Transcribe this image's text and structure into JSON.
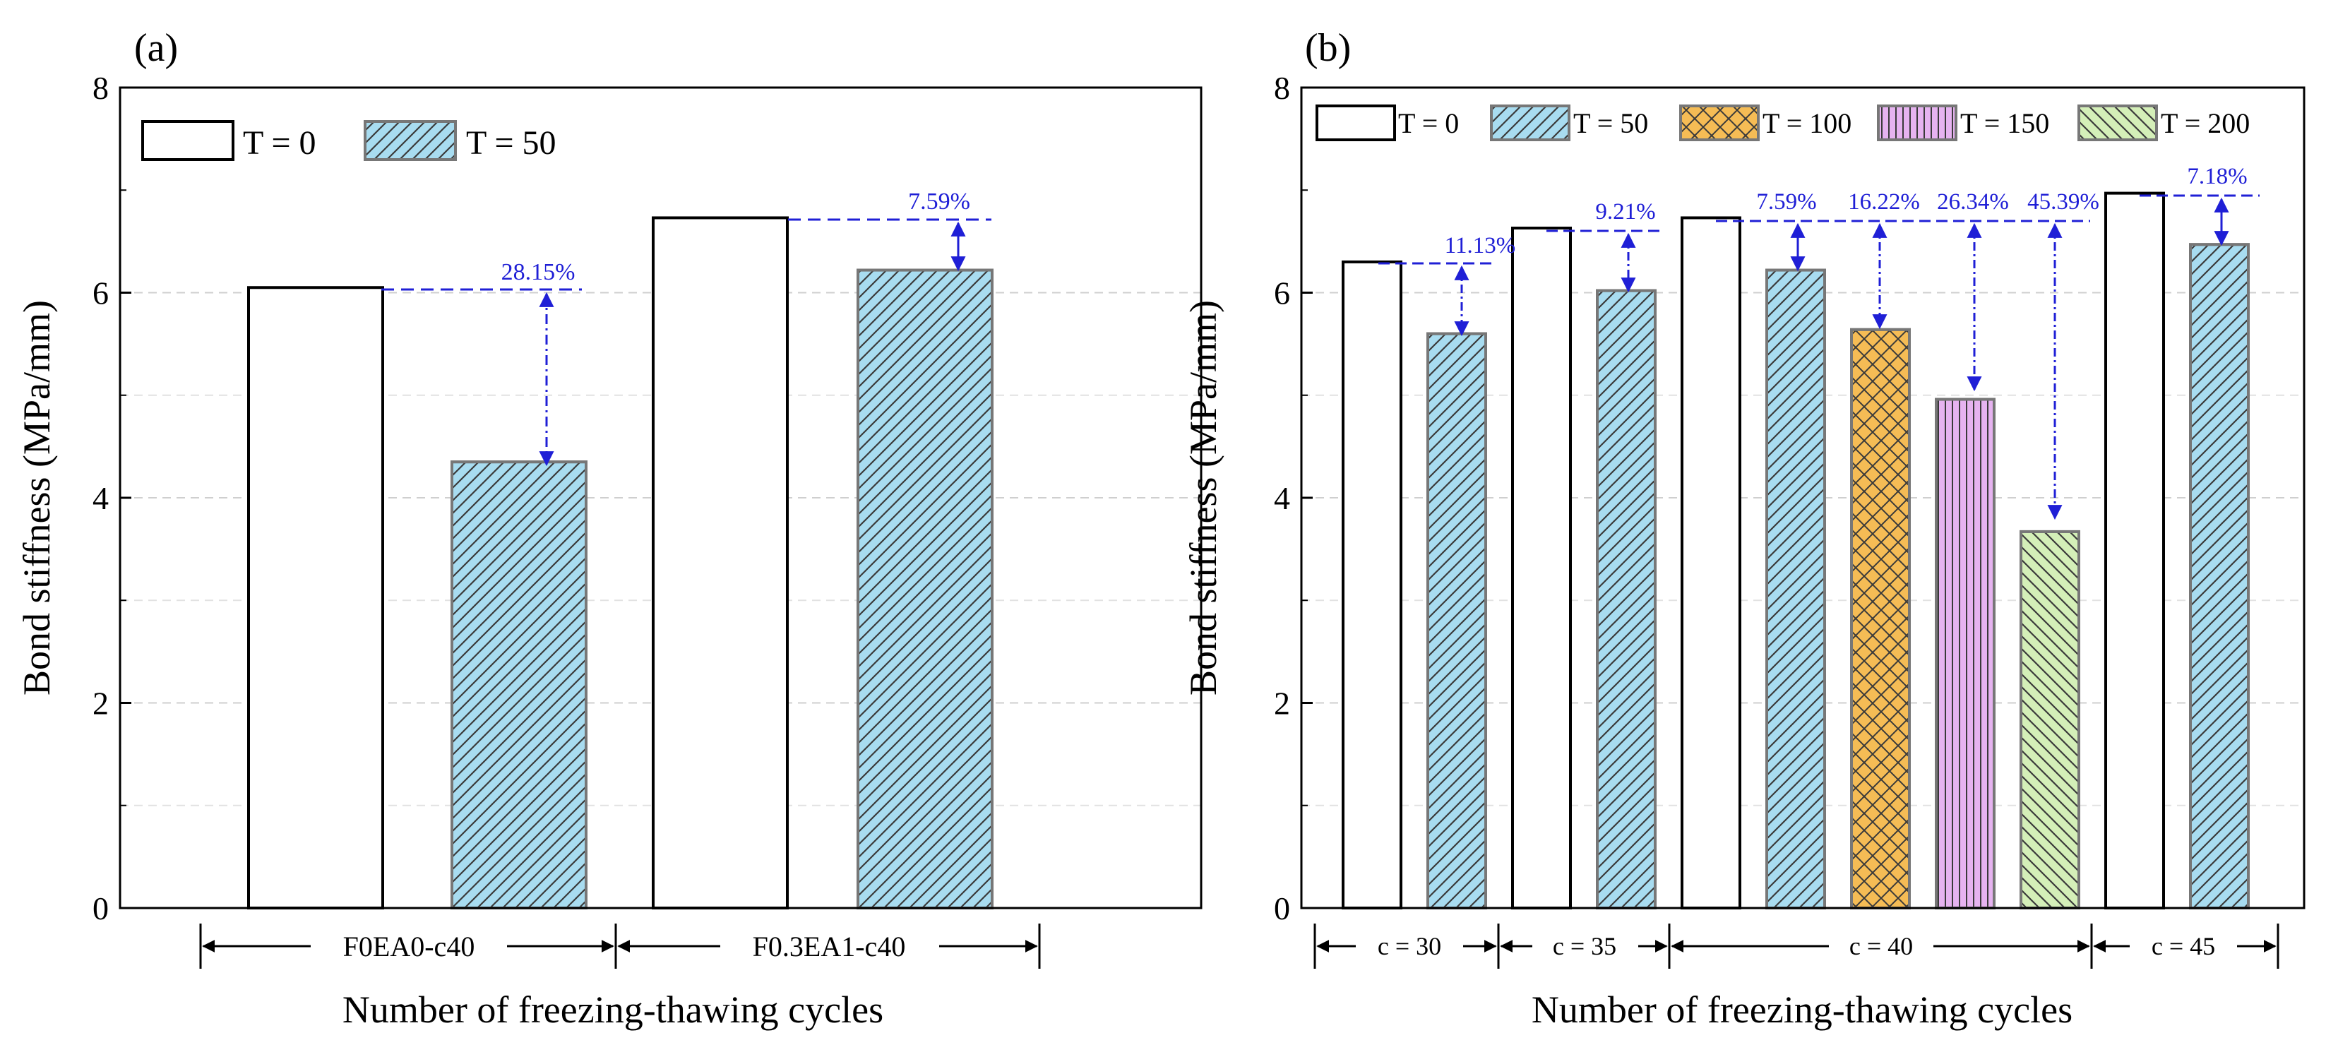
{
  "chart_data": [
    {
      "type": "bar",
      "panel_label": "(a)",
      "ylabel": "Bond stiffness (MPa/mm)",
      "xlabel": "Number of freezing-thawing cycles",
      "ylim": [
        0,
        8
      ],
      "yticks": [
        0,
        2,
        4,
        6,
        8
      ],
      "grid": "horizontal dashed",
      "legend_position": "top-left",
      "groups": [
        "F0EA0-c40",
        "F0.3EA1-c40"
      ],
      "series": [
        {
          "name": "T = 0",
          "color": "#ffffff",
          "pattern": "none",
          "values": [
            6.05,
            6.73
          ]
        },
        {
          "name": "T = 50",
          "color": "#a8dcf0",
          "pattern": "diagonal",
          "values": [
            4.35,
            6.22
          ]
        }
      ],
      "annotations": [
        "28.15%",
        "7.59%"
      ]
    },
    {
      "type": "bar",
      "panel_label": "(b)",
      "ylabel": "Bond stiffness (MPa/mm)",
      "xlabel": "Number of freezing-thawing cycles",
      "ylim": [
        0,
        8
      ],
      "yticks": [
        0,
        2,
        4,
        6,
        8
      ],
      "grid": "horizontal dashed",
      "legend_position": "top",
      "legend": [
        {
          "name": "T = 0",
          "color": "#ffffff",
          "pattern": "none"
        },
        {
          "name": "T = 50",
          "color": "#a8dcf0",
          "pattern": "diagonal"
        },
        {
          "name": "T = 100",
          "color": "#f5bc55",
          "pattern": "crosshatch"
        },
        {
          "name": "T = 150",
          "color": "#e6b3f0",
          "pattern": "vertical"
        },
        {
          "name": "T = 200",
          "color": "#d4efb8",
          "pattern": "backdiagonal"
        }
      ],
      "groups": [
        "c = 30",
        "c = 35",
        "c = 40",
        "c = 45"
      ],
      "bars": [
        {
          "group": "c = 30",
          "series": "T = 0",
          "value": 6.3
        },
        {
          "group": "c = 30",
          "series": "T = 50",
          "value": 5.6
        },
        {
          "group": "c = 35",
          "series": "T = 0",
          "value": 6.63
        },
        {
          "group": "c = 35",
          "series": "T = 50",
          "value": 6.02
        },
        {
          "group": "c = 40",
          "series": "T = 0",
          "value": 6.73
        },
        {
          "group": "c = 40",
          "series": "T = 50",
          "value": 6.22
        },
        {
          "group": "c = 40",
          "series": "T = 100",
          "value": 5.64
        },
        {
          "group": "c = 40",
          "series": "T = 150",
          "value": 4.96
        },
        {
          "group": "c = 40",
          "series": "T = 200",
          "value": 3.67
        },
        {
          "group": "c = 45",
          "series": "T = 0",
          "value": 6.97
        },
        {
          "group": "c = 45",
          "series": "T = 50",
          "value": 6.47
        }
      ],
      "annotations": [
        "11.13%",
        "9.21%",
        "7.59%",
        "16.22%",
        "26.34%",
        "45.39%",
        "7.18%"
      ]
    }
  ]
}
